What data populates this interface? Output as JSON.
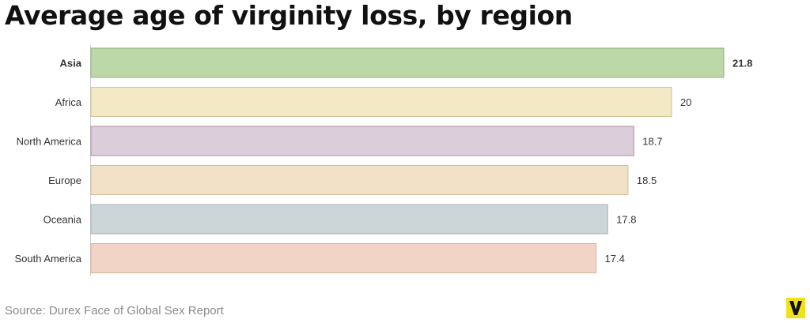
{
  "chart_data": {
    "type": "bar",
    "orientation": "horizontal",
    "title": "Average age of virginity loss, by region",
    "categories": [
      "Asia",
      "Africa",
      "North America",
      "Europe",
      "Oceania",
      "South America"
    ],
    "values": [
      21.8,
      20,
      18.7,
      18.5,
      17.8,
      17.4
    ],
    "value_labels": [
      "21.8",
      "20",
      "18.7",
      "18.5",
      "17.8",
      "17.4"
    ],
    "highlighted": "Asia",
    "colors": [
      {
        "fill": "#bcd8a8",
        "stroke": "#8eb276"
      },
      {
        "fill": "#f3e9c4",
        "stroke": "#cfc397"
      },
      {
        "fill": "#dbcdd9",
        "stroke": "#a890a4"
      },
      {
        "fill": "#f3e1c7",
        "stroke": "#d2bd9b"
      },
      {
        "fill": "#ccd6d9",
        "stroke": "#a3b0b4"
      },
      {
        "fill": "#f2d4c7",
        "stroke": "#d4b1a2"
      }
    ],
    "xlim": [
      0,
      21.8
    ],
    "grid": false,
    "legend": "none"
  },
  "source": "Source: Durex Face of Global Sex Report",
  "logo": {
    "letter": "V",
    "color": "#f2e11a"
  }
}
